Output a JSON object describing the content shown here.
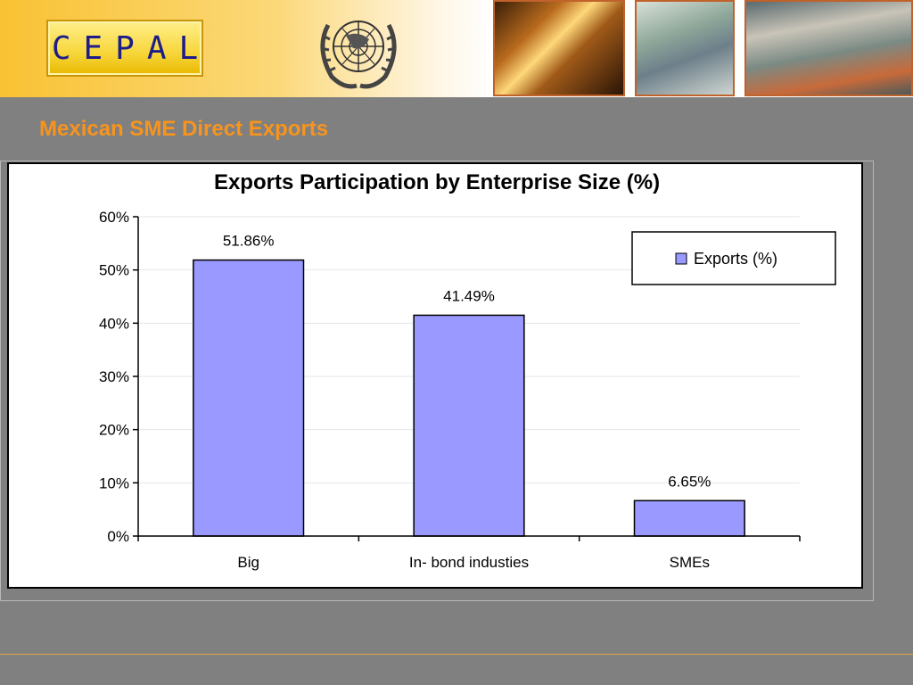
{
  "header": {
    "logo_text": "CEPAL"
  },
  "slide": {
    "title": "Mexican SME Direct Exports"
  },
  "chart_data": {
    "type": "bar",
    "title": "Exports Participation by Enterprise Size (%)",
    "categories": [
      "Big",
      "In- bond industies",
      "SMEs"
    ],
    "series": [
      {
        "name": "Exports (%)",
        "values": [
          51.86,
          41.49,
          6.65
        ],
        "color": "#9999ff"
      }
    ],
    "data_labels": [
      "51.86%",
      "41.49%",
      "6.65%"
    ],
    "y_ticks": [
      "0%",
      "10%",
      "20%",
      "30%",
      "40%",
      "50%",
      "60%"
    ],
    "ylim": [
      0,
      60
    ],
    "xlabel": "",
    "ylabel": "",
    "grid": true,
    "legend_position": "top-right"
  }
}
